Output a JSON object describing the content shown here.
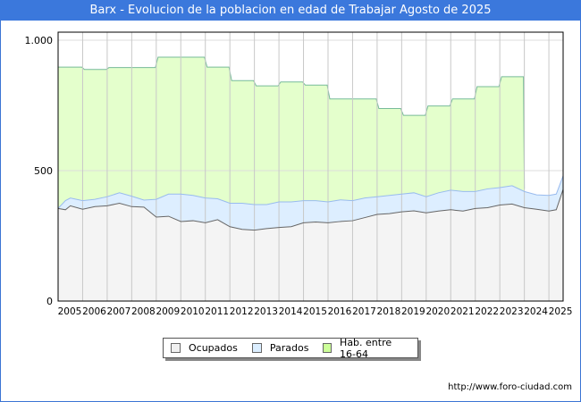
{
  "title": "Barx - Evolucion de la poblacion en edad de Trabajar Agosto de 2025",
  "source_url": "http://www.foro-ciudad.com",
  "colors": {
    "ocupados": "#f4f4f4",
    "ocupados_line": "#666666",
    "parados": "#ddeeff",
    "parados_line": "#99bbee",
    "hab": "#e4ffcc",
    "hab_line": "#77bb99",
    "title_bg": "#3b78dc"
  },
  "chart_data": {
    "type": "area",
    "title": "Barx - Evolucion de la poblacion en edad de Trabajar Agosto de 2025",
    "xlabel": "",
    "ylabel": "",
    "xlim": [
      2005,
      2025.58
    ],
    "ylim": [
      0,
      1000
    ],
    "yticks": [
      0,
      500,
      1000
    ],
    "ytick_labels": [
      "0",
      "500",
      "1.000"
    ],
    "xtick_labels": [
      "2005",
      "2006",
      "2007",
      "2008",
      "2009",
      "2010",
      "2011",
      "2012",
      "2013",
      "2014",
      "2015",
      "2016",
      "2017",
      "2018",
      "2019",
      "2020",
      "2021",
      "2022",
      "2023",
      "2024",
      "2025"
    ],
    "grid": true,
    "legend": {
      "position": "bottom",
      "entries": [
        "Ocupados",
        "Parados",
        "Hab. entre 16-64"
      ]
    },
    "hab_years": [
      2005,
      2006,
      2007,
      2008,
      2009,
      2010,
      2011,
      2012,
      2013,
      2014,
      2015,
      2016,
      2017,
      2018,
      2019,
      2020,
      2021,
      2022,
      2023
    ],
    "hab_values": [
      897,
      888,
      895,
      895,
      935,
      935,
      897,
      845,
      825,
      840,
      828,
      775,
      775,
      738,
      712,
      748,
      775,
      822,
      860
    ],
    "x": [
      2005,
      2005.3,
      2005.5,
      2006,
      2006.5,
      2007,
      2007.5,
      2008,
      2008.5,
      2009,
      2009.5,
      2010,
      2010.5,
      2011,
      2011.5,
      2012,
      2012.5,
      2013,
      2013.5,
      2014,
      2014.5,
      2015,
      2015.5,
      2016,
      2016.5,
      2017,
      2017.5,
      2018,
      2018.5,
      2019,
      2019.5,
      2020,
      2020.5,
      2021,
      2021.5,
      2022,
      2022.5,
      2023,
      2023.5,
      2024,
      2024.5,
      2025,
      2025.3,
      2025.58
    ],
    "ocupados": [
      355,
      350,
      365,
      352,
      362,
      365,
      375,
      362,
      360,
      322,
      325,
      305,
      308,
      300,
      312,
      285,
      275,
      272,
      278,
      282,
      285,
      300,
      303,
      300,
      305,
      308,
      320,
      332,
      335,
      342,
      346,
      338,
      345,
      350,
      345,
      355,
      358,
      368,
      372,
      358,
      352,
      345,
      350,
      428
    ],
    "parados": [
      0,
      35,
      30,
      33,
      28,
      35,
      40,
      40,
      27,
      68,
      85,
      105,
      97,
      95,
      80,
      90,
      100,
      98,
      92,
      98,
      95,
      85,
      82,
      80,
      83,
      77,
      75,
      68,
      70,
      68,
      69,
      62,
      70,
      75,
      75,
      65,
      72,
      67,
      70,
      62,
      55,
      60,
      60,
      52
    ]
  }
}
